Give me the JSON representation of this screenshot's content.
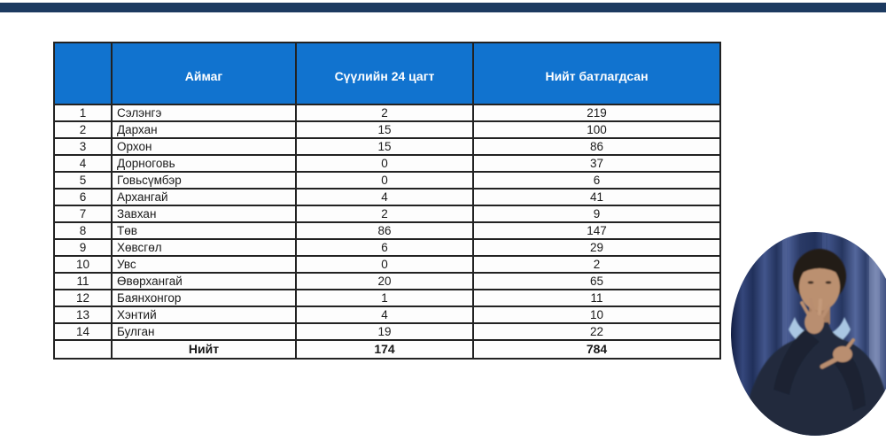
{
  "page": {
    "type": "broadcast-slide",
    "colors": {
      "top_bar": "#1c3a60",
      "table_header_bg": "#1173cf",
      "table_header_text": "#ffffff",
      "table_border": "#222222",
      "curtain_blue": "#2c3f74",
      "clothing_navy": "#202a3c",
      "skin_tone": "#b98e70",
      "scarf_light_blue": "#a9c6e2"
    }
  },
  "table": {
    "header": {
      "columns": [
        "",
        "Аймаг",
        "Сүүлийн 24 цагт",
        "Нийт батлагдсан"
      ]
    },
    "rows": [
      {
        "no": "1",
        "aimag": "Сэлэнгэ",
        "last24": "2",
        "total": "219"
      },
      {
        "no": "2",
        "aimag": "Дархан",
        "last24": "15",
        "total": "100"
      },
      {
        "no": "3",
        "aimag": "Орхон",
        "last24": "15",
        "total": "86"
      },
      {
        "no": "4",
        "aimag": "Дорноговь",
        "last24": "0",
        "total": "37"
      },
      {
        "no": "5",
        "aimag": "Говьсүмбэр",
        "last24": "0",
        "total": "6"
      },
      {
        "no": "6",
        "aimag": "Архангай",
        "last24": "4",
        "total": "41"
      },
      {
        "no": "7",
        "aimag": "Завхан",
        "last24": "2",
        "total": "9"
      },
      {
        "no": "8",
        "aimag": "Төв",
        "last24": "86",
        "total": "147"
      },
      {
        "no": "9",
        "aimag": "Хөвсгөл",
        "last24": "6",
        "total": "29"
      },
      {
        "no": "10",
        "aimag": "Увс",
        "last24": "0",
        "total": "2"
      },
      {
        "no": "11",
        "aimag": "Өвөрхангай",
        "last24": "20",
        "total": "65"
      },
      {
        "no": "12",
        "aimag": "Баянхонгор",
        "last24": "1",
        "total": "11"
      },
      {
        "no": "13",
        "aimag": "Хэнтий",
        "last24": "4",
        "total": "10"
      },
      {
        "no": "14",
        "aimag": "Булган",
        "last24": "19",
        "total": "22"
      }
    ],
    "total_row": {
      "label": "Нийт",
      "last24": "174",
      "total": "784"
    }
  },
  "interpreter": {
    "description": "sign language interpreter in oval video inset, navy curtain backdrop"
  }
}
